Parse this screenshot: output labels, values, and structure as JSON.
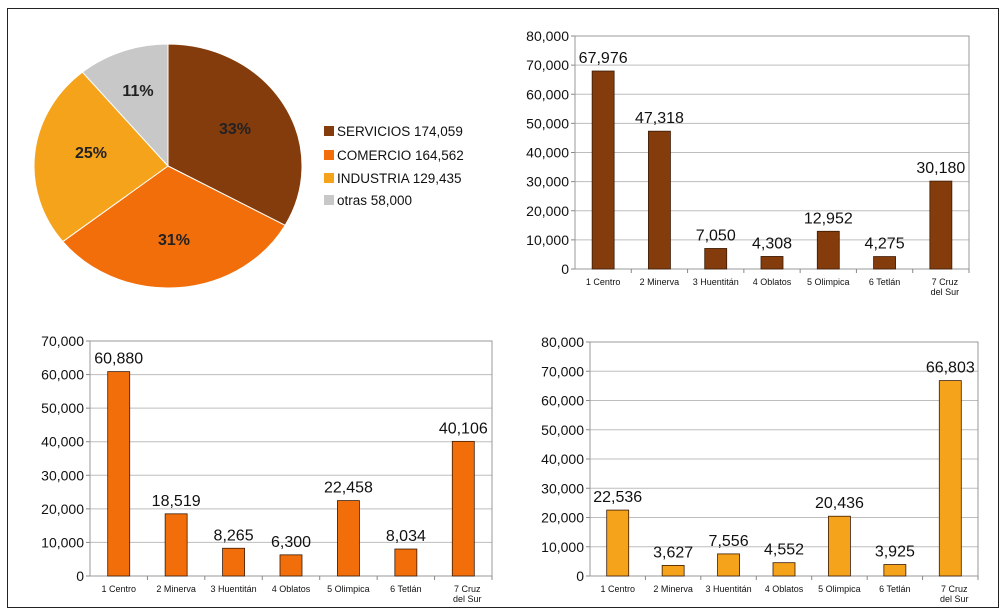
{
  "chart_data": [
    {
      "type": "pie",
      "slices": [
        {
          "label": "SERVICIOS 174,059",
          "percent_label": "33%",
          "value": 174059,
          "color": "#843C0C"
        },
        {
          "label": "COMERCIO 164,562",
          "percent_label": "31%",
          "value": 164562,
          "color": "#F26E0A"
        },
        {
          "label": "INDUSTRIA 129,435",
          "percent_label": "25%",
          "value": 129435,
          "color": "#F5A31A"
        },
        {
          "label": "otras 58,000",
          "percent_label": "11%",
          "value": 58000,
          "color": "#C8C8C8"
        }
      ],
      "legend_position": "right"
    },
    {
      "type": "bar",
      "categories": [
        "1 Centro",
        "2 Minerva",
        "3 Huentitán",
        "4 Oblatos",
        "5 Olimpica",
        "6 Tetlán",
        "7 Cruz del Sur"
      ],
      "values": [
        67976,
        47318,
        7050,
        4308,
        12952,
        4275,
        30180
      ],
      "data_labels": [
        "67,976",
        "47,318",
        "7,050",
        "4,308",
        "12,952",
        "4,275",
        "30,180"
      ],
      "y_ticks": [
        "0",
        "10,000",
        "20,000",
        "30,000",
        "40,000",
        "50,000",
        "60,000",
        "70,000",
        "80,000"
      ],
      "ylim": [
        0,
        80000
      ],
      "color": "#843C0C",
      "grid": true
    },
    {
      "type": "bar",
      "categories": [
        "1 Centro",
        "2 Minerva",
        "3 Huentitán",
        "4 Oblatos",
        "5 Olimpica",
        "6 Tetlán",
        "7 Cruz del Sur"
      ],
      "values": [
        60880,
        18519,
        8265,
        6300,
        22458,
        8034,
        40106
      ],
      "data_labels": [
        "60,880",
        "18,519",
        "8,265",
        "6,300",
        "22,458",
        "8,034",
        "40,106"
      ],
      "y_ticks": [
        "0",
        "10,000",
        "20,000",
        "30,000",
        "40,000",
        "50,000",
        "60,000",
        "70,000"
      ],
      "ylim": [
        0,
        70000
      ],
      "color": "#F26E0A",
      "grid": true
    },
    {
      "type": "bar",
      "categories": [
        "1 Centro",
        "2 Minerva",
        "3 Huentitán",
        "4 Oblatos",
        "5 Olimpica",
        "6 Tetlán",
        "7 Cruz del Sur"
      ],
      "values": [
        22536,
        3627,
        7556,
        4552,
        20436,
        3925,
        66803
      ],
      "data_labels": [
        "22,536",
        "3,627",
        "7,556",
        "4,552",
        "20,436",
        "3,925",
        "66,803"
      ],
      "y_ticks": [
        "0",
        "10,000",
        "20,000",
        "30,000",
        "40,000",
        "50,000",
        "60,000",
        "70,000",
        "80,000"
      ],
      "ylim": [
        0,
        80000
      ],
      "color": "#F5A31A",
      "grid": true
    }
  ]
}
